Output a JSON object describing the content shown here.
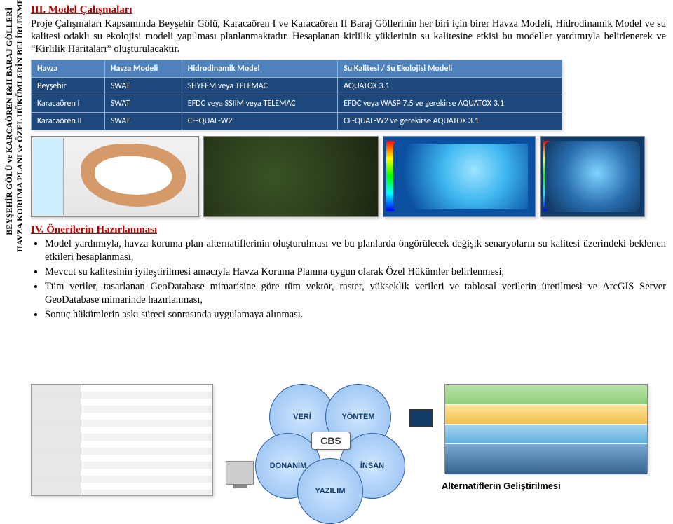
{
  "vertical_label_line1": "BEYŞEHİR GÖLÜ ve KARCAÖREN I&II BARAJ GÖLLERİ",
  "vertical_label_line2": "HAVZA KORUMA PLANI ve ÖZEL HÜKÜMLERİN BELİRLENMESİ",
  "section3": {
    "title": "III. Model Çalışmaları",
    "paragraph": "Proje Çalışmaları Kapsamında Beyşehir Gölü, Karacaören I ve Karacaören II Baraj Göllerinin her biri için birer Havza Modeli, Hidrodinamik Model ve su kalitesi odaklı su ekolojisi modeli yapılması planlanmaktadır. Hesaplanan kirlilik yüklerinin su kalitesine etkisi bu modeller yardımıyla belirlenerek ve “Kirlilik Haritaları” oluşturulacaktır."
  },
  "models_table": {
    "headers": [
      "Havza",
      "Havza Modeli",
      "Hidrodinamik Model",
      "Su Kalitesi / Su Ekolojisi Modeli"
    ],
    "rows": [
      [
        "Beyşehir",
        "SWAT",
        "SHYFEM veya TELEMAC",
        "AQUATOX 3.1"
      ],
      [
        "Karacaören I",
        "SWAT",
        "EFDC veya SSIIM veya TELEMAC",
        "EFDC veya WASP 7.5 ve gerekirse AQUATOX 3.1"
      ],
      [
        "Karacaören II",
        "SWAT",
        "CE-QUAL-W2",
        "CE-QUAL-W2 ve gerekirse AQUATOX 3.1"
      ]
    ],
    "header_bg": "#4f81bd",
    "cell_bg": "#1f497d",
    "text_color": "#ffffff",
    "font_family": "Calibri",
    "font_size_pt": 9
  },
  "section4": {
    "title": "IV. Önerilerin Hazırlanması",
    "bullets": [
      "Model yardımıyla, havza koruma plan alternatiflerinin oluşturulması ve bu planlarda öngörülecek değişik senaryoların su kalitesi üzerindeki beklenen etkileri hesaplanması,",
      "Mevcut su kalitesinin iyileştirilmesi amacıyla Havza Koruma Planına uygun olarak Özel Hükümler belirlenmesi,",
      "Tüm veriler, tasarlanan GeoDatabase mimarisine göre tüm vektör, raster, yükseklik verileri ve tablosal verilerin üretilmesi ve ArcGIS Server GeoDatabase mimarinde hazırlanması,",
      "Sonuç hükümlerin askı süreci sonrasında uygulamaya alınması."
    ]
  },
  "venn": {
    "center": "CBS",
    "labels": {
      "veri": "VERİ",
      "yontem": "YÖNTEM",
      "donanim": "DONANIM",
      "insan": "İNSAN",
      "yazilim": "YAZILIM"
    },
    "circle_fill": "#8fbdf0",
    "circle_text_color": "#103a6a"
  },
  "alt_caption": "Alternatiflerin Geliştirilmesi",
  "colors": {
    "section_title": "#c00000",
    "body_text": "#000000",
    "table_border": "#9bb0c7"
  },
  "map_strip": {
    "panels": [
      {
        "name": "gis-screenshot",
        "dominant_colors": [
          "#d49a6a",
          "#ffffff",
          "#cfefff"
        ]
      },
      {
        "name": "terrain-3d",
        "dominant_colors": [
          "#3a5225",
          "#2a3a1a",
          "#1a2410"
        ]
      },
      {
        "name": "bathymetry-blue",
        "dominant_colors": [
          "#9fe3ff",
          "#3fb8f0",
          "#0b4fa0"
        ],
        "has_color_scale": true
      },
      {
        "name": "bathymetry-alt",
        "dominant_colors": [
          "#7fd4ff",
          "#2a6fb0",
          "#123a66"
        ],
        "has_color_scale": true
      }
    ]
  },
  "alt_stack_layers": [
    "#8fcf7a",
    "#f2c14e",
    "#5fb1e0",
    "#36618f"
  ]
}
